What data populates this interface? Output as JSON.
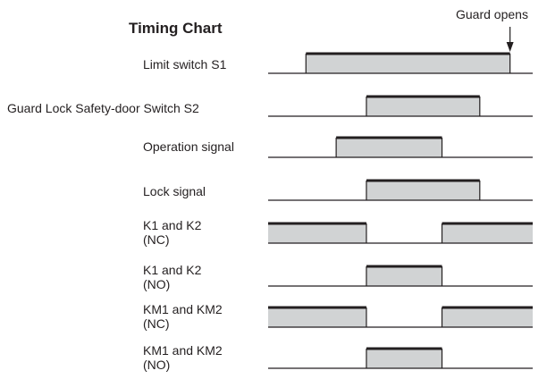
{
  "title": "Timing Chart",
  "annotation": "Guard opens",
  "signals": [
    {
      "label_lines": [
        "Limit switch S1"
      ],
      "on": [
        [
          1,
          6.4
        ]
      ]
    },
    {
      "label_lines": [
        "Guard Lock Safety-door Switch S2"
      ],
      "on": [
        [
          2.6,
          5.6
        ]
      ]
    },
    {
      "label_lines": [
        "Operation signal"
      ],
      "on": [
        [
          1.8,
          4.6
        ]
      ]
    },
    {
      "label_lines": [
        "Lock signal"
      ],
      "on": [
        [
          2.6,
          5.6
        ]
      ]
    },
    {
      "label_lines": [
        "K1 and K2",
        "(NC)"
      ],
      "on": [
        [
          0,
          2.6
        ],
        [
          4.6,
          7
        ]
      ]
    },
    {
      "label_lines": [
        "K1 and K2",
        "(NO)"
      ],
      "on": [
        [
          2.6,
          4.6
        ]
      ]
    },
    {
      "label_lines": [
        "KM1 and KM2",
        "(NC)"
      ],
      "on": [
        [
          0,
          2.6
        ],
        [
          4.6,
          7
        ]
      ]
    },
    {
      "label_lines": [
        "KM1 and KM2",
        "(NO)"
      ],
      "on": [
        [
          2.6,
          4.6
        ]
      ]
    }
  ],
  "colors": {
    "fill": "#d1d3d4",
    "line": "#231f20"
  }
}
